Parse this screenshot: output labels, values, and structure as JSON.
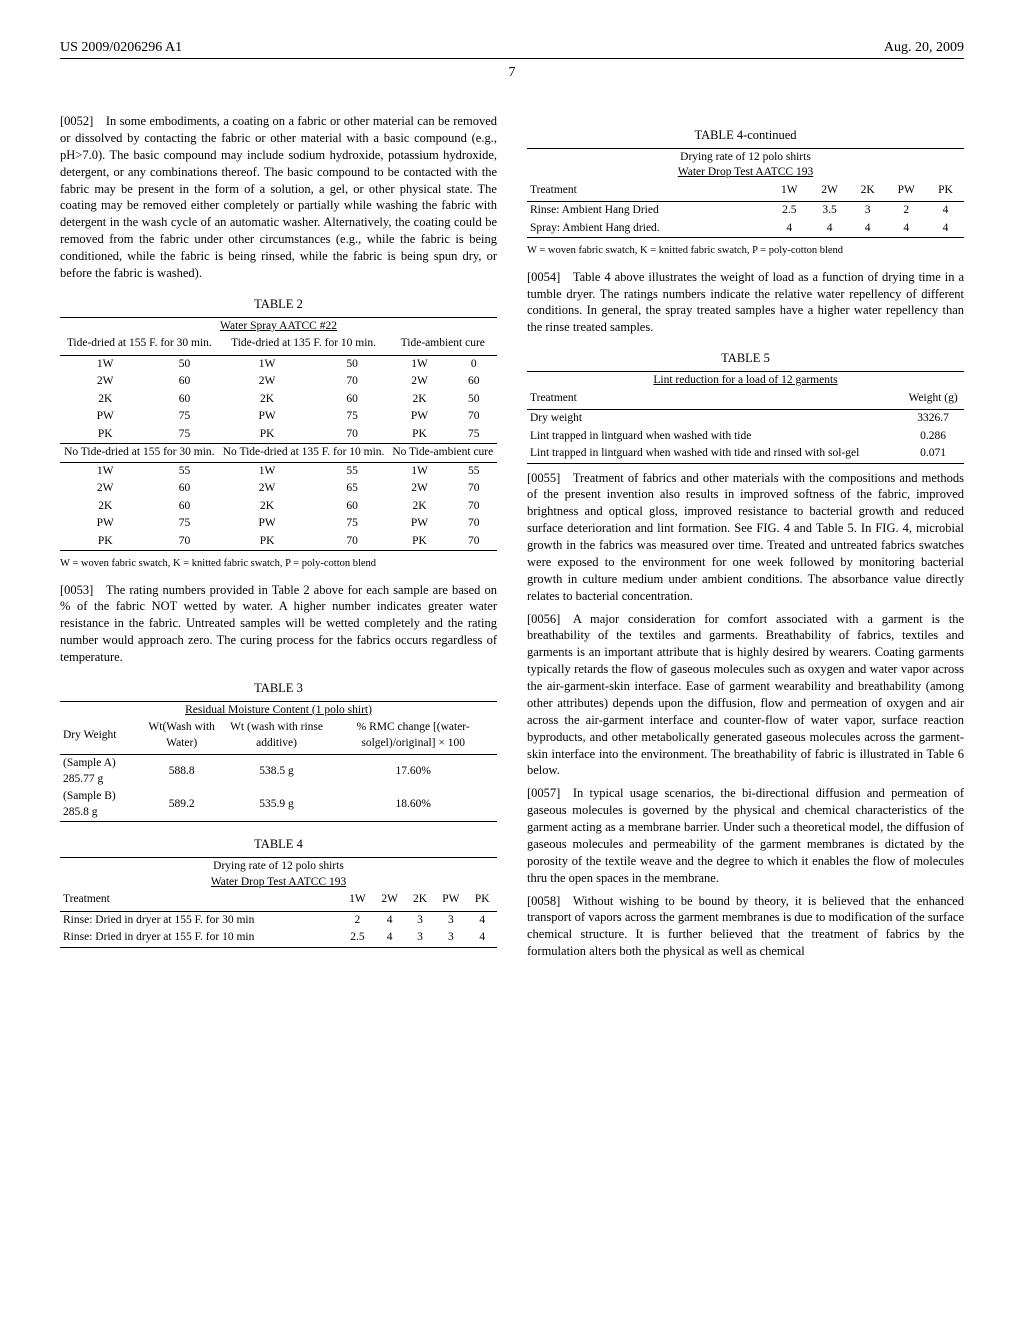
{
  "header": {
    "left": "US 2009/0206296 A1",
    "right": "Aug. 20, 2009"
  },
  "page_number": "7",
  "paragraphs": {
    "p0052": "[0052] In some embodiments, a coating on a fabric or other material can be removed or dissolved by contacting the fabric or other material with a basic compound (e.g., pH>7.0). The basic compound may include sodium hydroxide, potassium hydroxide, detergent, or any combinations thereof. The basic compound to be contacted with the fabric may be present in the form of a solution, a gel, or other physical state. The coating may be removed either completely or partially while washing the fabric with detergent in the wash cycle of an automatic washer. Alternatively, the coating could be removed from the fabric under other circumstances (e.g., while the fabric is being conditioned, while the fabric is being rinsed, while the fabric is being spun dry, or before the fabric is washed).",
    "p0053": "[0053] The rating numbers provided in Table 2 above for each sample are based on % of the fabric NOT wetted by water. A higher number indicates greater water resistance in the fabric. Untreated samples will be wetted completely and the rating number would approach zero. The curing process for the fabrics occurs regardless of temperature.",
    "p0054": "[0054] Table 4 above illustrates the weight of load as a function of drying time in a tumble dryer. The ratings numbers indicate the relative water repellency of different conditions. In general, the spray treated samples have a higher water repellency than the rinse treated samples.",
    "p0055": "[0055] Treatment of fabrics and other materials with the compositions and methods of the present invention also results in improved softness of the fabric, improved brightness and optical gloss, improved resistance to bacterial growth and reduced surface deterioration and lint formation. See FIG. 4 and Table 5. In FIG. 4, microbial growth in the fabrics was measured over time. Treated and untreated fabrics swatches were exposed to the environment for one week followed by monitoring bacterial growth in culture medium under ambient conditions. The absorbance value directly relates to bacterial concentration.",
    "p0056": "[0056] A major consideration for comfort associated with a garment is the breathability of the textiles and garments. Breathability of fabrics, textiles and garments is an important attribute that is highly desired by wearers. Coating garments typically retards the flow of gaseous molecules such as oxygen and water vapor across the air-garment-skin interface. Ease of garment wearability and breathability (among other attributes) depends upon the diffusion, flow and permeation of oxygen and air across the air-garment interface and counter-flow of water vapor, surface reaction byproducts, and other metabolically generated gaseous molecules across the garment-skin interface into the environment. The breathability of fabric is illustrated in Table 6 below.",
    "p0057": "[0057] In typical usage scenarios, the bi-directional diffusion and permeation of gaseous molecules is governed by the physical and chemical characteristics of the garment acting as a membrane barrier. Under such a theoretical model, the diffusion of gaseous molecules and permeability of the garment membranes is dictated by the porosity of the textile weave and the degree to which it enables the flow of molecules thru the open spaces in the membrane.",
    "p0058": "[0058] Without wishing to be bound by theory, it is believed that the enhanced transport of vapors across the garment membranes is due to modification of the surface chemical structure. It is further believed that the treatment of fabrics by the formulation alters both the physical as well as chemical"
  },
  "table2": {
    "caption": "TABLE 2",
    "subtitle": "Water Spray AATCC #22",
    "header_a": [
      "Tide-dried at 155 F. for 30 min.",
      "Tide-dried at 135 F. for 10 min.",
      "Tide-ambient cure"
    ],
    "rows_a": [
      [
        "1W",
        "50",
        "1W",
        "50",
        "1W",
        "0"
      ],
      [
        "2W",
        "60",
        "2W",
        "70",
        "2W",
        "60"
      ],
      [
        "2K",
        "60",
        "2K",
        "60",
        "2K",
        "50"
      ],
      [
        "PW",
        "75",
        "PW",
        "75",
        "PW",
        "70"
      ],
      [
        "PK",
        "75",
        "PK",
        "70",
        "PK",
        "75"
      ]
    ],
    "header_b": [
      "No Tide-dried at 155 for 30 min.",
      "No Tide-dried at 135 F. for 10 min.",
      "No Tide-ambient cure"
    ],
    "rows_b": [
      [
        "1W",
        "55",
        "1W",
        "55",
        "1W",
        "55"
      ],
      [
        "2W",
        "60",
        "2W",
        "65",
        "2W",
        "70"
      ],
      [
        "2K",
        "60",
        "2K",
        "60",
        "2K",
        "70"
      ],
      [
        "PW",
        "75",
        "PW",
        "75",
        "PW",
        "70"
      ],
      [
        "PK",
        "70",
        "PK",
        "70",
        "PK",
        "70"
      ]
    ],
    "footnote": "W = woven fabric swatch, K = knitted fabric swatch, P = poly-cotton blend"
  },
  "table3": {
    "caption": "TABLE 3",
    "subtitle": "Residual Moisture Content (1 polo shirt)",
    "columns": [
      "Dry Weight",
      "Wt(Wash with Water)",
      "Wt (wash with rinse additive)",
      "% RMC change [(water-solgel)/original] × 100"
    ],
    "rows": [
      [
        "(Sample A) 285.77 g",
        "588.8",
        "538.5 g",
        "17.60%"
      ],
      [
        "(Sample B) 285.8 g",
        "589.2",
        "535.9 g",
        "18.60%"
      ]
    ]
  },
  "table4": {
    "caption": "TABLE 4",
    "subtitle_l1": "Drying rate of 12 polo shirts",
    "subtitle_l2": "Water Drop Test AATCC 193",
    "columns": [
      "Treatment",
      "1W",
      "2W",
      "2K",
      "PW",
      "PK"
    ],
    "rows": [
      [
        "Rinse: Dried in dryer at 155 F. for 30 min",
        "2",
        "4",
        "3",
        "3",
        "4"
      ],
      [
        "Rinse: Dried in dryer at 155 F. for 10 min",
        "2.5",
        "4",
        "3",
        "3",
        "4"
      ]
    ]
  },
  "table4c": {
    "caption": "TABLE 4-continued",
    "subtitle_l1": "Drying rate of 12 polo shirts",
    "subtitle_l2": "Water Drop Test AATCC 193",
    "columns": [
      "Treatment",
      "1W",
      "2W",
      "2K",
      "PW",
      "PK"
    ],
    "rows": [
      [
        "Rinse: Ambient Hang Dried",
        "2.5",
        "3.5",
        "3",
        "2",
        "4"
      ],
      [
        "Spray: Ambient Hang dried.",
        "4",
        "4",
        "4",
        "4",
        "4"
      ]
    ],
    "footnote": "W = woven fabric swatch, K = knitted fabric swatch, P = poly-cotton blend"
  },
  "table5": {
    "caption": "TABLE 5",
    "subtitle": "Lint reduction for a load of 12 garments",
    "columns": [
      "Treatment",
      "Weight (g)"
    ],
    "rows": [
      [
        "Dry weight",
        "3326.7"
      ],
      [
        "Lint trapped in lintguard when washed with tide",
        "0.286"
      ],
      [
        "Lint trapped in lintguard when washed with tide and rinsed with sol-gel",
        "0.071"
      ]
    ]
  }
}
